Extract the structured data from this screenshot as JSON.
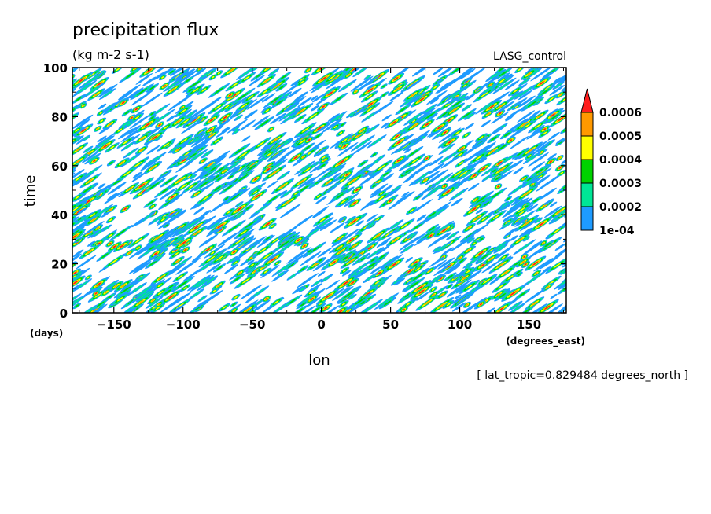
{
  "chart_data": {
    "type": "heatmap",
    "title": "precipitation flux",
    "units": "(kg m-2 s-1)",
    "dataset_label": "LASG_control",
    "xlabel": "lon",
    "ylabel": "time",
    "x_units": "(degrees_east)",
    "y_units": "(days)",
    "xlim": [
      -180,
      177
    ],
    "ylim": [
      0,
      100
    ],
    "x_ticks": [
      -150,
      -100,
      -50,
      0,
      50,
      100,
      150
    ],
    "y_ticks": [
      0,
      20,
      40,
      60,
      80,
      100
    ],
    "footnote": "[ lat_tropic=0.829484 degrees_north ]",
    "colorbar": {
      "labels": [
        "1e-04",
        "0.0002",
        "0.0003",
        "0.0004",
        "0.0005",
        "0.0006"
      ],
      "colors": [
        "#1e9bff",
        "#00e696",
        "#00d200",
        "#ffff00",
        "#ff9900",
        "#ff1e1e"
      ],
      "extend": "max"
    },
    "pattern": {
      "description_free": true,
      "seed": 7,
      "streak_count": 1700,
      "eastward_drift_deg_per_day": 2.6
    }
  }
}
